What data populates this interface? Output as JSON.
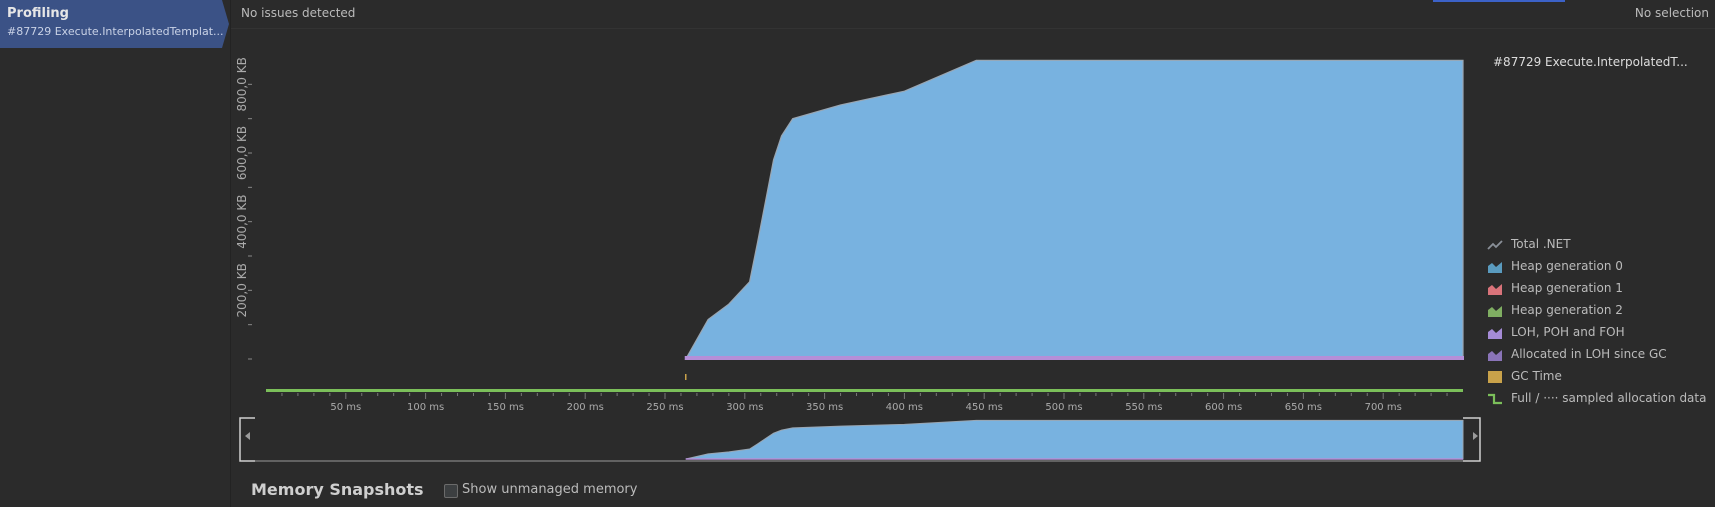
{
  "sidebar": {
    "tab_title": "Profiling",
    "tab_subtitle": "#87729 Execute.InterpolatedTemplat..."
  },
  "topbar": {
    "status_left": "No issues detected",
    "status_right": "No selection"
  },
  "chart_data": {
    "type": "area",
    "x_unit": "ms",
    "x_ticks": [
      "50 ms",
      "100 ms",
      "150 ms",
      "200 ms",
      "250 ms",
      "300 ms",
      "350 ms",
      "400 ms",
      "450 ms",
      "500 ms",
      "550 ms",
      "600 ms",
      "650 ms",
      "700 ms"
    ],
    "y_ticks": [
      "200,0 KB",
      "400,0 KB",
      "600,0 KB",
      "800,0 KB"
    ],
    "xlim": [
      0,
      750
    ],
    "ylim": [
      0,
      900
    ],
    "series": [
      {
        "name": "Heap generation 0",
        "color": "#78b2e0",
        "x": [
          263,
          277,
          290,
          303,
          308,
          313,
          318,
          323,
          330,
          360,
          400,
          445,
          750
        ],
        "y": [
          0,
          115,
          160,
          225,
          340,
          460,
          580,
          650,
          700,
          740,
          780,
          870,
          870
        ]
      },
      {
        "name": "LOH, POH and FOH",
        "color": "#b58fd8",
        "x": [
          263,
          750
        ],
        "y": [
          6,
          6
        ]
      }
    ],
    "gc_marker_x": 263,
    "full_line_color": "#7bbf5a",
    "legend": {
      "title": "#87729 Execute.InterpolatedT...",
      "items": [
        {
          "label": "Total .NET",
          "icon": "line-icon",
          "color": "#8a9099"
        },
        {
          "label": "Heap generation 0",
          "icon": "area-icon",
          "color": "#5a9bbf"
        },
        {
          "label": "Heap generation 1",
          "icon": "area-icon",
          "color": "#d9737a"
        },
        {
          "label": "Heap generation 2",
          "icon": "area-icon",
          "color": "#7fae62"
        },
        {
          "label": "LOH, POH and FOH",
          "icon": "area-icon",
          "color": "#a58bd6"
        },
        {
          "label": "Allocated in LOH since GC",
          "icon": "area-icon",
          "color": "#8a74b8"
        },
        {
          "label": "GC Time",
          "icon": "square-icon",
          "color": "#c9a24a"
        },
        {
          "label": "Full / ···· sampled allocation data",
          "icon": "step-icon",
          "color": "#7bbf5a"
        }
      ]
    }
  },
  "bottom": {
    "title": "Memory Snapshots",
    "checkbox_label": "Show unmanaged memory",
    "checkbox_checked": false
  }
}
